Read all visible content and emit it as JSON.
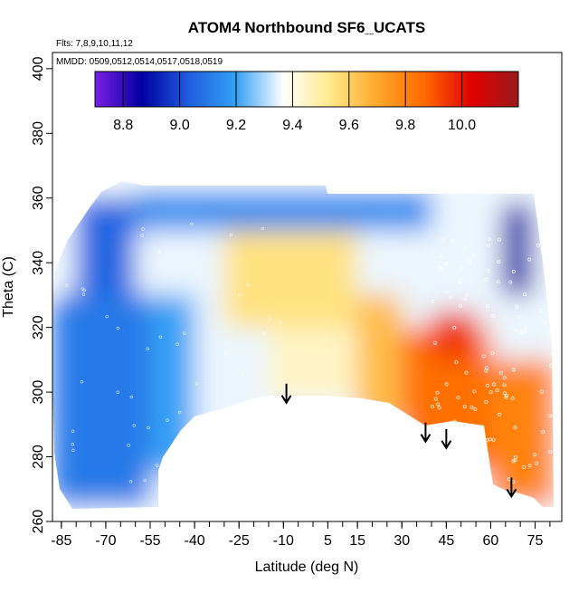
{
  "chart_data": {
    "type": "heatmap",
    "title": "ATOM4 Northbound SF6_UCATS",
    "annotations": [
      "Flts: 7,8,9,10,11,12",
      "MMDD: 0509,0512,0514,0517,0518,0519"
    ],
    "xlabel": "Latitude (deg N)",
    "ylabel": "Theta (C)",
    "xlim": [
      -88,
      84
    ],
    "ylim": [
      260,
      405
    ],
    "x_ticks": [
      -85,
      -70,
      -55,
      -40,
      -25,
      -10,
      5,
      15,
      30,
      45,
      60,
      75
    ],
    "y_ticks": [
      260,
      280,
      300,
      320,
      340,
      360,
      380,
      400
    ],
    "colorbar": {
      "range": [
        8.7,
        10.2
      ],
      "ticks": [
        "8.8",
        "9.0",
        "9.2",
        "9.4",
        "9.6",
        "9.8",
        "10.0"
      ],
      "tick_values": [
        8.8,
        9.0,
        9.2,
        9.4,
        9.6,
        9.8,
        10.0
      ],
      "colors": [
        "#7a1ee6",
        "#0000a0",
        "#1f5fe0",
        "#35a0f5",
        "#ffffff",
        "#ffe98a",
        "#ffa82b",
        "#ff6a00",
        "#e00000",
        "#9a1a1a"
      ]
    },
    "arrows": [
      {
        "lat": -9,
        "theta": 297
      },
      {
        "lat": 38,
        "theta": 285
      },
      {
        "lat": 45,
        "theta": 283
      },
      {
        "lat": 67,
        "theta": 268
      }
    ],
    "field_regions": [
      {
        "lat_range": [
          -88,
          -55
        ],
        "theta_range": [
          265,
          330
        ],
        "value": 9.1
      },
      {
        "lat_range": [
          -80,
          -60
        ],
        "theta_range": [
          330,
          360
        ],
        "value": 9.05
      },
      {
        "lat_range": [
          -55,
          -40
        ],
        "theta_range": [
          275,
          330
        ],
        "value": 9.2
      },
      {
        "lat_range": [
          -40,
          -15
        ],
        "theta_range": [
          285,
          335
        ],
        "value": 9.35
      },
      {
        "lat_range": [
          -15,
          15
        ],
        "theta_range": [
          298,
          320
        ],
        "value": 9.45
      },
      {
        "lat_range": [
          -30,
          15
        ],
        "theta_range": [
          320,
          350
        ],
        "value": 9.55
      },
      {
        "lat_range": [
          -60,
          40
        ],
        "theta_range": [
          350,
          362
        ],
        "value": 9.15
      },
      {
        "lat_range": [
          15,
          30
        ],
        "theta_range": [
          290,
          330
        ],
        "value": 9.65
      },
      {
        "lat_range": [
          30,
          60
        ],
        "theta_range": [
          275,
          320
        ],
        "value": 9.85
      },
      {
        "lat_range": [
          40,
          55
        ],
        "theta_range": [
          310,
          325
        ],
        "value": 9.95
      },
      {
        "lat_range": [
          60,
          82
        ],
        "theta_range": [
          265,
          310
        ],
        "value": 9.8
      },
      {
        "lat_range": [
          64,
          74
        ],
        "theta_range": [
          330,
          358
        ],
        "value": 8.85
      }
    ]
  }
}
